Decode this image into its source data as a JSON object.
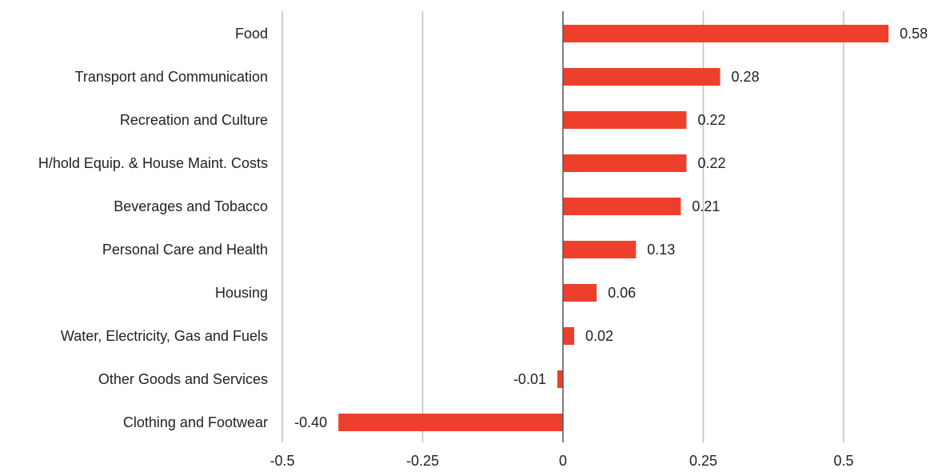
{
  "chart_data": {
    "type": "bar",
    "orientation": "horizontal",
    "title": "",
    "xlabel": "",
    "ylabel": "",
    "categories": [
      "Food",
      "Transport and Communication",
      "Recreation and Culture",
      "H/hold Equip. & House Maint. Costs",
      "Beverages and Tobacco",
      "Personal Care and Health",
      "Housing",
      "Water, Electricity, Gas and Fuels",
      "Other Goods and Services",
      "Clothing and Footwear"
    ],
    "values": [
      0.58,
      0.28,
      0.22,
      0.22,
      0.21,
      0.13,
      0.06,
      0.02,
      -0.01,
      -0.4
    ],
    "value_labels": [
      "0.58",
      "0.28",
      "0.22",
      "0.22",
      "0.21",
      "0.13",
      "0.06",
      "0.02",
      "-0.01",
      "-0.40"
    ],
    "xlim": [
      -0.5,
      0.5
    ],
    "xticks": [
      -0.5,
      -0.25,
      0,
      0.25,
      0.5
    ],
    "xtick_labels": [
      "-0.5",
      "-0.25",
      "0",
      "0.25",
      "0.5"
    ],
    "grid": "vertical",
    "legend": "none",
    "bar_color": "#ee3f2c",
    "grid_color": "#c0c0c0",
    "zero_line_color": "#555555",
    "text_color": "#222222"
  }
}
